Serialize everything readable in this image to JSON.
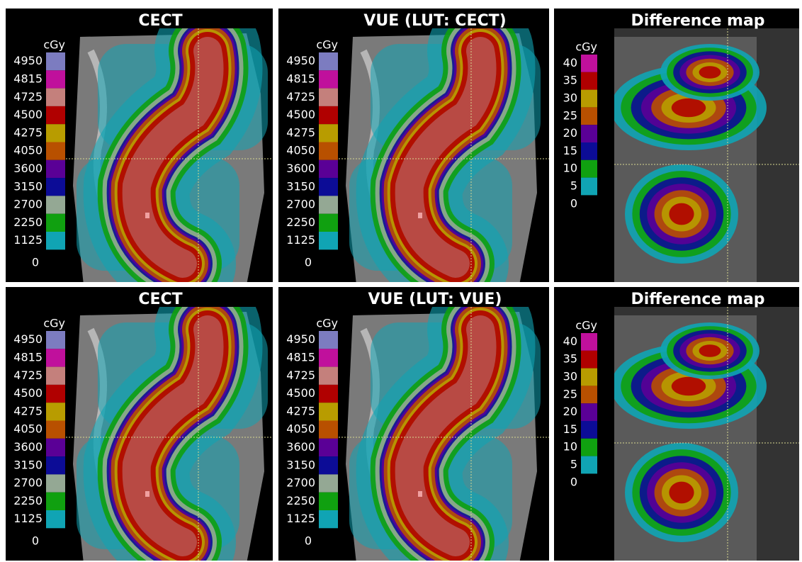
{
  "panels": [
    {
      "title": "CECT",
      "unit": "cGy",
      "kind": "dose",
      "scale": [
        {
          "label": 4950,
          "color": "#7c7cc0"
        },
        {
          "label": 4815,
          "color": "#c0109c"
        },
        {
          "label": 4725,
          "color": "#c4807c"
        },
        {
          "label": 4500,
          "color": "#b00000"
        },
        {
          "label": 4275,
          "color": "#b89c00"
        },
        {
          "label": 4050,
          "color": "#b85000"
        },
        {
          "label": 3600,
          "color": "#5a0096"
        },
        {
          "label": 3150,
          "color": "#0c0c96"
        },
        {
          "label": 2700,
          "color": "#94a894"
        },
        {
          "label": 2250,
          "color": "#10a010"
        },
        {
          "label": 1125,
          "color": "#10a4b4"
        },
        {
          "label": 0
        }
      ]
    },
    {
      "title": "VUE (LUT: CECT)",
      "unit": "cGy",
      "kind": "dose",
      "scale": [
        {
          "label": 4950,
          "color": "#7c7cc0"
        },
        {
          "label": 4815,
          "color": "#c0109c"
        },
        {
          "label": 4725,
          "color": "#c4807c"
        },
        {
          "label": 4500,
          "color": "#b00000"
        },
        {
          "label": 4275,
          "color": "#b89c00"
        },
        {
          "label": 4050,
          "color": "#b85000"
        },
        {
          "label": 3600,
          "color": "#5a0096"
        },
        {
          "label": 3150,
          "color": "#0c0c96"
        },
        {
          "label": 2700,
          "color": "#94a894"
        },
        {
          "label": 2250,
          "color": "#10a010"
        },
        {
          "label": 1125,
          "color": "#10a4b4"
        },
        {
          "label": 0
        }
      ]
    },
    {
      "title": "Difference map",
      "unit": "cGy",
      "kind": "difference",
      "scale": [
        {
          "label": 40,
          "color": "#c0109c"
        },
        {
          "label": 35,
          "color": "#b00000"
        },
        {
          "label": 30,
          "color": "#b89c00"
        },
        {
          "label": 25,
          "color": "#b85000"
        },
        {
          "label": 20,
          "color": "#5a0096"
        },
        {
          "label": 15,
          "color": "#0c0c96"
        },
        {
          "label": 10,
          "color": "#10a010"
        },
        {
          "label": 5,
          "color": "#10a4b4"
        },
        {
          "label": 0
        }
      ]
    },
    {
      "title": "CECT",
      "unit": "cGy",
      "kind": "dose",
      "scale": [
        {
          "label": 4950,
          "color": "#7c7cc0"
        },
        {
          "label": 4815,
          "color": "#c0109c"
        },
        {
          "label": 4725,
          "color": "#c4807c"
        },
        {
          "label": 4500,
          "color": "#b00000"
        },
        {
          "label": 4275,
          "color": "#b89c00"
        },
        {
          "label": 4050,
          "color": "#b85000"
        },
        {
          "label": 3600,
          "color": "#5a0096"
        },
        {
          "label": 3150,
          "color": "#0c0c96"
        },
        {
          "label": 2700,
          "color": "#94a894"
        },
        {
          "label": 2250,
          "color": "#10a010"
        },
        {
          "label": 1125,
          "color": "#10a4b4"
        },
        {
          "label": 0
        }
      ]
    },
    {
      "title": "VUE (LUT: VUE)",
      "unit": "cGy",
      "kind": "dose",
      "scale": [
        {
          "label": 4950,
          "color": "#7c7cc0"
        },
        {
          "label": 4815,
          "color": "#c0109c"
        },
        {
          "label": 4725,
          "color": "#c4807c"
        },
        {
          "label": 4500,
          "color": "#b00000"
        },
        {
          "label": 4275,
          "color": "#b89c00"
        },
        {
          "label": 4050,
          "color": "#b85000"
        },
        {
          "label": 3600,
          "color": "#5a0096"
        },
        {
          "label": 3150,
          "color": "#0c0c96"
        },
        {
          "label": 2700,
          "color": "#94a894"
        },
        {
          "label": 2250,
          "color": "#10a010"
        },
        {
          "label": 1125,
          "color": "#10a4b4"
        },
        {
          "label": 0
        }
      ]
    },
    {
      "title": "Difference map",
      "unit": "cGy",
      "kind": "difference",
      "scale": [
        {
          "label": 40,
          "color": "#c0109c"
        },
        {
          "label": 35,
          "color": "#b00000"
        },
        {
          "label": 30,
          "color": "#b89c00"
        },
        {
          "label": 25,
          "color": "#b85000"
        },
        {
          "label": 20,
          "color": "#5a0096"
        },
        {
          "label": 15,
          "color": "#0c0c96"
        },
        {
          "label": 10,
          "color": "#10a010"
        },
        {
          "label": 5,
          "color": "#10a4b4"
        },
        {
          "label": 0
        }
      ]
    }
  ]
}
